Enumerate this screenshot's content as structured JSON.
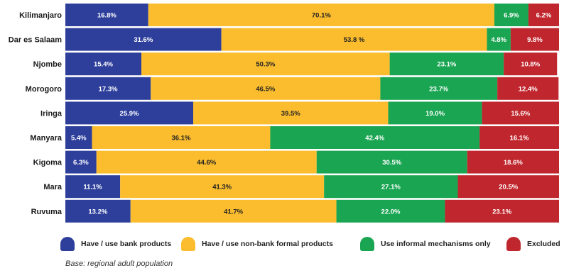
{
  "chart_data": {
    "type": "bar",
    "orientation": "horizontal",
    "stacked": true,
    "categories": [
      "Kilimanjaro",
      "Dar es Salaam",
      "Njombe",
      "Morogoro",
      "Iringa",
      "Manyara",
      "Kigoma",
      "Mara",
      "Ruvuma"
    ],
    "series": [
      {
        "name": "Have / use bank products",
        "color": "#2e3f9b",
        "values": [
          16.8,
          31.6,
          15.4,
          17.3,
          25.9,
          5.4,
          6.3,
          11.1,
          13.2
        ],
        "labels": [
          "16.8%",
          "31.6%",
          "15.4%",
          "17.3%",
          "25.9%",
          "5.4%",
          "6.3%",
          "11.1%",
          "13.2%"
        ]
      },
      {
        "name": "Have / use non-bank formal products",
        "color": "#fbbd2e",
        "values": [
          70.1,
          53.8,
          50.3,
          46.5,
          39.5,
          36.1,
          44.6,
          41.3,
          41.7
        ],
        "labels": [
          "70.1%",
          "53.8 %",
          "50.3%",
          "46.5%",
          "39.5%",
          "36.1%",
          "44.6%",
          "41.3%",
          "41.7%"
        ]
      },
      {
        "name": "Use informal mechanisms only",
        "color": "#1aa552",
        "values": [
          6.9,
          4.8,
          23.1,
          23.7,
          19.0,
          42.4,
          30.5,
          27.1,
          22.0
        ],
        "labels": [
          "6.9%",
          "4.8%",
          "23.1%",
          "23.7%",
          "19.0%",
          "42.4%",
          "30.5%",
          "27.1%",
          "22.0%"
        ]
      },
      {
        "name": "Excluded",
        "color": "#c0262d",
        "values": [
          6.2,
          9.8,
          10.8,
          12.4,
          15.6,
          16.1,
          18.6,
          20.5,
          23.1
        ],
        "labels": [
          "6.2%",
          "9.8%",
          "10.8%",
          "12.4%",
          "15.6%",
          "16.1%",
          "18.6%",
          "20.5%",
          "23.1%"
        ]
      }
    ],
    "xlim": [
      0,
      100
    ],
    "legend_position": "bottom",
    "grid": false
  },
  "legend": {
    "items": [
      {
        "label": "Have / use bank products",
        "color": "#2e3f9b"
      },
      {
        "label": "Have / use non-bank formal products",
        "color": "#fbbd2e"
      },
      {
        "label": "Use informal mechanisms only",
        "color": "#1aa552"
      },
      {
        "label": "Excluded",
        "color": "#c0262d"
      }
    ]
  },
  "footnote": "Base: regional adult population"
}
